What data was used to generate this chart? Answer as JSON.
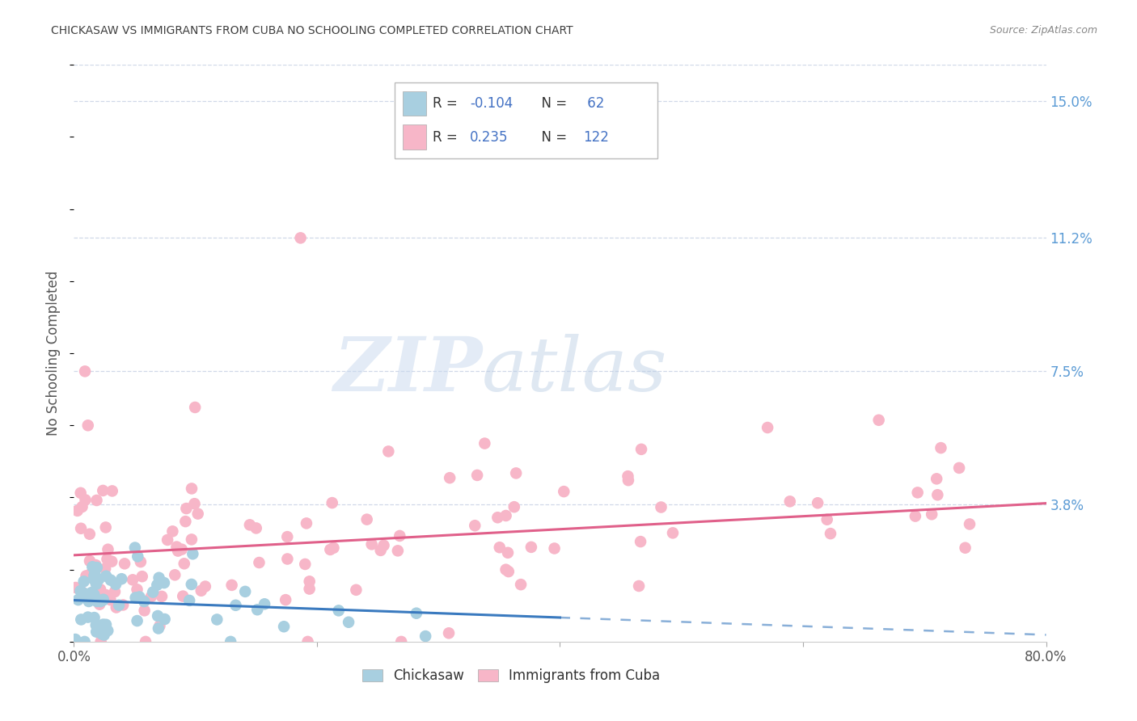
{
  "title": "CHICKASAW VS IMMIGRANTS FROM CUBA NO SCHOOLING COMPLETED CORRELATION CHART",
  "source": "Source: ZipAtlas.com",
  "ylabel": "No Schooling Completed",
  "watermark_zip": "ZIP",
  "watermark_atlas": "atlas",
  "chickasaw_R": -0.104,
  "chickasaw_N": 62,
  "cuba_R": 0.235,
  "cuba_N": 122,
  "xlim": [
    0.0,
    0.8
  ],
  "ylim": [
    0.0,
    0.16
  ],
  "ytick_vals": [
    0.038,
    0.075,
    0.112,
    0.15
  ],
  "ytick_labels": [
    "3.8%",
    "7.5%",
    "11.2%",
    "15.0%"
  ],
  "xtick_vals": [
    0.0,
    0.2,
    0.4,
    0.6,
    0.8
  ],
  "xtick_labels": [
    "0.0%",
    "",
    "",
    "",
    "80.0%"
  ],
  "chickasaw_color": "#a8cfe0",
  "cuba_color": "#f7b6c8",
  "chickasaw_line_color": "#3a7abf",
  "cuba_line_color": "#e0608a",
  "right_axis_color": "#5b9bd5",
  "legend_text_color": "#4472c4",
  "title_color": "#404040",
  "grid_color": "#d0d8e8",
  "background_color": "#ffffff",
  "chick_line_x0": 0.0,
  "chick_line_x1": 0.4,
  "chick_line_x2": 0.8,
  "chick_intercept": 0.0115,
  "chick_slope": -0.012,
  "cuba_line_x0": 0.0,
  "cuba_line_x1": 0.8,
  "cuba_intercept": 0.024,
  "cuba_slope": 0.018
}
